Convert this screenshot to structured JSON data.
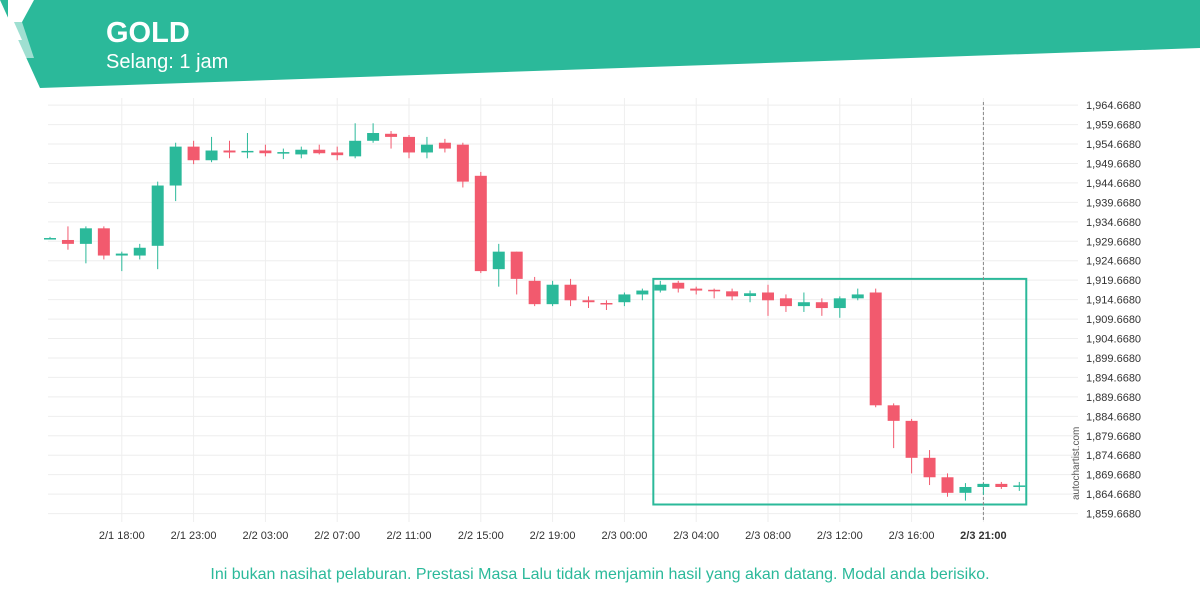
{
  "header": {
    "symbol": "GOLD",
    "interval": "Selang: 1 jam",
    "logo_icon": "autochartist-logo-icon"
  },
  "colors": {
    "brand": "#2bb99a",
    "bull": "#2bb99a",
    "bear": "#f25a6e",
    "grid": "#eeeeee",
    "text": "#333333"
  },
  "chart_data": {
    "type": "candlestick",
    "grid": true,
    "y_axis": {
      "position": "right",
      "ticks": [
        1964.668,
        1959.668,
        1954.668,
        1949.668,
        1944.668,
        1939.668,
        1934.668,
        1929.668,
        1924.668,
        1919.668,
        1914.668,
        1909.668,
        1904.668,
        1899.668,
        1894.668,
        1889.668,
        1884.668,
        1879.668,
        1874.668,
        1869.668,
        1864.668,
        1859.668
      ],
      "tick_labels": [
        "1,964.6680",
        "1,959.6680",
        "1,954.6680",
        "1,949.6680",
        "1,944.6680",
        "1,939.6680",
        "1,934.6680",
        "1,929.6680",
        "1,924.6680",
        "1,919.6680",
        "1,914.6680",
        "1,909.6680",
        "1,904.6680",
        "1,899.6680",
        "1,894.6680",
        "1,889.6680",
        "1,884.6680",
        "1,879.6680",
        "1,874.6680",
        "1,869.6680",
        "1,864.6680",
        "1,859.6680"
      ],
      "range": [
        1857.5,
        1966.5
      ]
    },
    "x_axis": {
      "ticks": [
        {
          "label": "2/1 18:00",
          "index": 4,
          "bold": false
        },
        {
          "label": "2/1 23:00",
          "index": 8,
          "bold": false
        },
        {
          "label": "2/2 03:00",
          "index": 12,
          "bold": false
        },
        {
          "label": "2/2 07:00",
          "index": 16,
          "bold": false
        },
        {
          "label": "2/2 11:00",
          "index": 20,
          "bold": false
        },
        {
          "label": "2/2 15:00",
          "index": 24,
          "bold": false
        },
        {
          "label": "2/2 19:00",
          "index": 28,
          "bold": false
        },
        {
          "label": "2/3 00:00",
          "index": 32,
          "bold": false
        },
        {
          "label": "2/3 04:00",
          "index": 36,
          "bold": false
        },
        {
          "label": "2/3 08:00",
          "index": 40,
          "bold": false
        },
        {
          "label": "2/3 12:00",
          "index": 44,
          "bold": false
        },
        {
          "label": "2/3 16:00",
          "index": 48,
          "bold": false
        },
        {
          "label": "2/3 21:00",
          "index": 52,
          "bold": true
        }
      ]
    },
    "candles": [
      {
        "o": 1930.3,
        "h": 1930.8,
        "l": 1930.2,
        "c": 1930.5
      },
      {
        "o": 1930.0,
        "h": 1933.5,
        "l": 1927.5,
        "c": 1929.0
      },
      {
        "o": 1929.0,
        "h": 1933.5,
        "l": 1924.0,
        "c": 1933.0
      },
      {
        "o": 1933.0,
        "h": 1933.5,
        "l": 1925.0,
        "c": 1926.0
      },
      {
        "o": 1926.0,
        "h": 1927.0,
        "l": 1922.0,
        "c": 1926.5
      },
      {
        "o": 1926.0,
        "h": 1929.0,
        "l": 1925.0,
        "c": 1928.0
      },
      {
        "o": 1928.5,
        "h": 1945.0,
        "l": 1922.5,
        "c": 1944.0
      },
      {
        "o": 1944.0,
        "h": 1955.0,
        "l": 1940.0,
        "c": 1954.0
      },
      {
        "o": 1954.0,
        "h": 1955.5,
        "l": 1949.5,
        "c": 1950.5
      },
      {
        "o": 1950.5,
        "h": 1956.5,
        "l": 1950.0,
        "c": 1953.0
      },
      {
        "o": 1953.0,
        "h": 1955.5,
        "l": 1951.0,
        "c": 1952.5
      },
      {
        "o": 1952.6,
        "h": 1957.5,
        "l": 1951.0,
        "c": 1952.9
      },
      {
        "o": 1953.0,
        "h": 1954.5,
        "l": 1951.5,
        "c": 1952.3
      },
      {
        "o": 1952.2,
        "h": 1953.5,
        "l": 1950.8,
        "c": 1952.6
      },
      {
        "o": 1952.0,
        "h": 1954.0,
        "l": 1951.0,
        "c": 1953.2
      },
      {
        "o": 1953.2,
        "h": 1954.5,
        "l": 1952.0,
        "c": 1952.3
      },
      {
        "o": 1952.5,
        "h": 1954.0,
        "l": 1950.5,
        "c": 1951.8
      },
      {
        "o": 1951.5,
        "h": 1960.0,
        "l": 1951.0,
        "c": 1955.5
      },
      {
        "o": 1955.5,
        "h": 1960.0,
        "l": 1955.0,
        "c": 1957.5
      },
      {
        "o": 1957.3,
        "h": 1958.0,
        "l": 1953.5,
        "c": 1956.5
      },
      {
        "o": 1956.5,
        "h": 1957.0,
        "l": 1951.0,
        "c": 1952.5
      },
      {
        "o": 1952.5,
        "h": 1956.5,
        "l": 1951.0,
        "c": 1954.5
      },
      {
        "o": 1955.0,
        "h": 1956.0,
        "l": 1952.5,
        "c": 1953.5
      },
      {
        "o": 1954.5,
        "h": 1955.0,
        "l": 1943.5,
        "c": 1945.0
      },
      {
        "o": 1946.5,
        "h": 1947.5,
        "l": 1921.5,
        "c": 1922.0
      },
      {
        "o": 1922.5,
        "h": 1929.0,
        "l": 1918.0,
        "c": 1927.0
      },
      {
        "o": 1927.0,
        "h": 1927.0,
        "l": 1916.0,
        "c": 1920.0
      },
      {
        "o": 1919.5,
        "h": 1920.5,
        "l": 1913.0,
        "c": 1913.5
      },
      {
        "o": 1913.5,
        "h": 1919.5,
        "l": 1913.0,
        "c": 1918.5
      },
      {
        "o": 1918.5,
        "h": 1920.0,
        "l": 1913.0,
        "c": 1914.5
      },
      {
        "o": 1914.5,
        "h": 1915.5,
        "l": 1912.5,
        "c": 1914.0
      },
      {
        "o": 1913.8,
        "h": 1914.5,
        "l": 1912.0,
        "c": 1913.5
      },
      {
        "o": 1914.0,
        "h": 1916.5,
        "l": 1913.0,
        "c": 1916.0
      },
      {
        "o": 1916.0,
        "h": 1917.5,
        "l": 1914.5,
        "c": 1917.0
      },
      {
        "o": 1917.0,
        "h": 1919.5,
        "l": 1916.5,
        "c": 1918.5
      },
      {
        "o": 1919.0,
        "h": 1919.5,
        "l": 1916.5,
        "c": 1917.5
      },
      {
        "o": 1917.5,
        "h": 1918.0,
        "l": 1916.0,
        "c": 1917.0
      },
      {
        "o": 1917.2,
        "h": 1917.5,
        "l": 1915.0,
        "c": 1916.8
      },
      {
        "o": 1916.8,
        "h": 1917.5,
        "l": 1914.5,
        "c": 1915.5
      },
      {
        "o": 1915.6,
        "h": 1917.0,
        "l": 1914.0,
        "c": 1916.3
      },
      {
        "o": 1916.5,
        "h": 1918.5,
        "l": 1910.5,
        "c": 1914.5
      },
      {
        "o": 1915.0,
        "h": 1916.0,
        "l": 1911.5,
        "c": 1913.0
      },
      {
        "o": 1913.0,
        "h": 1916.5,
        "l": 1911.5,
        "c": 1914.0
      },
      {
        "o": 1914.0,
        "h": 1915.0,
        "l": 1910.5,
        "c": 1912.5
      },
      {
        "o": 1912.5,
        "h": 1915.5,
        "l": 1910.0,
        "c": 1915.0
      },
      {
        "o": 1915.0,
        "h": 1917.5,
        "l": 1914.5,
        "c": 1916.0
      },
      {
        "o": 1916.5,
        "h": 1917.5,
        "l": 1887.0,
        "c": 1887.5
      },
      {
        "o": 1887.5,
        "h": 1888.0,
        "l": 1876.5,
        "c": 1883.5
      },
      {
        "o": 1883.5,
        "h": 1884.0,
        "l": 1870.0,
        "c": 1874.0
      },
      {
        "o": 1874.0,
        "h": 1876.0,
        "l": 1867.0,
        "c": 1869.0
      },
      {
        "o": 1869.0,
        "h": 1870.0,
        "l": 1864.0,
        "c": 1865.0
      },
      {
        "o": 1865.0,
        "h": 1867.5,
        "l": 1863.0,
        "c": 1866.5
      },
      {
        "o": 1866.5,
        "h": 1867.5,
        "l": 1864.5,
        "c": 1867.3
      },
      {
        "o": 1867.3,
        "h": 1867.8,
        "l": 1866.0,
        "c": 1866.5
      },
      {
        "o": 1866.6,
        "h": 1867.8,
        "l": 1865.5,
        "c": 1866.9
      }
    ],
    "highlight_box": {
      "from_index": 34,
      "to_index": 54,
      "top": 1920.0,
      "bottom": 1862.0
    },
    "current_time_index": 52
  },
  "watermark": "autochartist.com",
  "disclaimer": "Ini bukan nasihat pelaburan. Prestasi Masa Lalu tidak menjamin hasil yang akan datang. Modal anda berisiko."
}
